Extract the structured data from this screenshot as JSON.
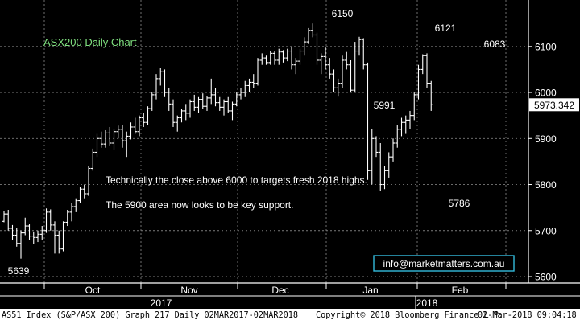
{
  "chart_data": {
    "type": "ohlc-bar",
    "title": "ASX200 Daily Chart",
    "y_ticks": [
      5600,
      5700,
      5800,
      5900,
      6000,
      6100
    ],
    "ylim": [
      5593,
      6194
    ],
    "month_labels": [
      "Oct",
      "Nov",
      "Dec",
      "Jan",
      "Feb"
    ],
    "year_labels": [
      "2017",
      "2018"
    ],
    "current_price": "5973.342",
    "annotations": [
      {
        "text": "6150",
        "value": 6150
      },
      {
        "text": "6121",
        "value": 6121
      },
      {
        "text": "6083",
        "value": 6083
      },
      {
        "text": "5991",
        "value": 5991
      },
      {
        "text": "5786",
        "value": 5786
      },
      {
        "text": "5639",
        "value": 5639
      }
    ],
    "commentary": [
      "Technically the close above 6000 to targets fresh 2018 highs.",
      "The 5900 area now looks to be key support."
    ],
    "contact": "info@marketmatters.com.au",
    "colors": {
      "background": "#000000",
      "bars": "#ffffff",
      "grid": "#7a7a7a",
      "title": "#7fe07f",
      "contact_border": "#33bbdd"
    },
    "series": [
      {
        "values": [
          [
            5720,
            5742,
            5718,
            5736
          ],
          [
            5736,
            5745,
            5700,
            5705
          ],
          [
            5705,
            5712,
            5680,
            5690
          ],
          [
            5690,
            5705,
            5665,
            5672
          ],
          [
            5672,
            5700,
            5639,
            5695
          ],
          [
            5695,
            5728,
            5690,
            5710
          ],
          [
            5710,
            5715,
            5680,
            5688
          ],
          [
            5688,
            5698,
            5670,
            5685
          ],
          [
            5685,
            5700,
            5675,
            5692
          ],
          [
            5692,
            5710,
            5680,
            5700
          ],
          [
            5700,
            5748,
            5695,
            5740
          ],
          [
            5740,
            5746,
            5700,
            5712
          ],
          [
            5712,
            5720,
            5650,
            5690
          ],
          [
            5690,
            5700,
            5650,
            5660
          ],
          [
            5660,
            5720,
            5655,
            5718
          ],
          [
            5718,
            5745,
            5710,
            5740
          ],
          [
            5740,
            5760,
            5720,
            5752
          ],
          [
            5752,
            5770,
            5740,
            5765
          ],
          [
            5765,
            5795,
            5760,
            5790
          ],
          [
            5790,
            5800,
            5770,
            5780
          ],
          [
            5780,
            5840,
            5775,
            5835
          ],
          [
            5835,
            5878,
            5830,
            5870
          ],
          [
            5870,
            5910,
            5860,
            5900
          ],
          [
            5900,
            5915,
            5880,
            5888
          ],
          [
            5888,
            5918,
            5880,
            5912
          ],
          [
            5912,
            5925,
            5885,
            5890
          ],
          [
            5890,
            5920,
            5875,
            5915
          ],
          [
            5915,
            5928,
            5900,
            5920
          ],
          [
            5920,
            5930,
            5880,
            5895
          ],
          [
            5895,
            5915,
            5860,
            5905
          ],
          [
            5905,
            5935,
            5898,
            5925
          ],
          [
            5925,
            5945,
            5910,
            5915
          ],
          [
            5915,
            5950,
            5905,
            5945
          ],
          [
            5945,
            5955,
            5925,
            5935
          ],
          [
            5935,
            5970,
            5930,
            5965
          ],
          [
            5965,
            6000,
            5960,
            5995
          ],
          [
            5995,
            6040,
            5985,
            6030
          ],
          [
            6030,
            6053,
            6015,
            6045
          ],
          [
            6045,
            6050,
            5990,
            6000
          ],
          [
            6000,
            6010,
            5960,
            5975
          ],
          [
            5975,
            5985,
            5925,
            5935
          ],
          [
            5935,
            5950,
            5915,
            5945
          ],
          [
            5945,
            5965,
            5935,
            5960
          ],
          [
            5960,
            5975,
            5940,
            5955
          ],
          [
            5955,
            5985,
            5945,
            5980
          ],
          [
            5980,
            5995,
            5960,
            5968
          ],
          [
            5968,
            5990,
            5955,
            5985
          ],
          [
            5985,
            5998,
            5965,
            5970
          ],
          [
            5970,
            5992,
            5960,
            5988
          ],
          [
            5988,
            6030,
            5975,
            5995
          ],
          [
            5995,
            6010,
            5970,
            5978
          ],
          [
            5978,
            5990,
            5960,
            5968
          ],
          [
            5968,
            5985,
            5950,
            5980
          ],
          [
            5980,
            5990,
            5955,
            5960
          ],
          [
            5960,
            5980,
            5940,
            5975
          ],
          [
            5975,
            6000,
            5970,
            5995
          ],
          [
            5995,
            6010,
            5985,
            6000
          ],
          [
            6000,
            6025,
            5990,
            6015
          ],
          [
            6015,
            6030,
            6000,
            6022
          ],
          [
            6022,
            6040,
            6010,
            6020
          ],
          [
            6020,
            6075,
            6015,
            6070
          ],
          [
            6070,
            6085,
            6060,
            6075
          ],
          [
            6075,
            6080,
            6060,
            6065
          ],
          [
            6065,
            6090,
            6060,
            6085
          ],
          [
            6085,
            6090,
            6060,
            6070
          ],
          [
            6070,
            6095,
            6060,
            6088
          ],
          [
            6088,
            6092,
            6065,
            6075
          ],
          [
            6075,
            6095,
            6068,
            6090
          ],
          [
            6090,
            6100,
            6050,
            6060
          ],
          [
            6060,
            6075,
            6040,
            6068
          ],
          [
            6068,
            6095,
            6060,
            6090
          ],
          [
            6090,
            6120,
            6080,
            6110
          ],
          [
            6110,
            6140,
            6105,
            6135
          ],
          [
            6135,
            6150,
            6120,
            6125
          ],
          [
            6125,
            6130,
            6060,
            6070
          ],
          [
            6070,
            6085,
            6040,
            6078
          ],
          [
            6078,
            6100,
            6050,
            6060
          ],
          [
            6060,
            6075,
            6030,
            6040
          ],
          [
            6040,
            6050,
            6000,
            6010
          ],
          [
            6010,
            6030,
            5991,
            6020
          ],
          [
            6020,
            6080,
            6010,
            6070
          ],
          [
            6070,
            6088,
            6050,
            6060
          ],
          [
            6060,
            6070,
            6000,
            6005
          ],
          [
            6005,
            6110,
            6000,
            6090
          ],
          [
            6090,
            6121,
            6080,
            6115
          ],
          [
            6115,
            6118,
            6050,
            6060
          ],
          [
            6060,
            6065,
            5810,
            5830
          ],
          [
            5830,
            5920,
            5800,
            5900
          ],
          [
            5900,
            5905,
            5860,
            5870
          ],
          [
            5870,
            5890,
            5786,
            5800
          ],
          [
            5800,
            5840,
            5790,
            5830
          ],
          [
            5830,
            5870,
            5815,
            5860
          ],
          [
            5860,
            5900,
            5850,
            5890
          ],
          [
            5890,
            5930,
            5880,
            5920
          ],
          [
            5920,
            5945,
            5905,
            5935
          ],
          [
            5935,
            5950,
            5910,
            5940
          ],
          [
            5940,
            5960,
            5920,
            5950
          ],
          [
            5950,
            6000,
            5940,
            5995
          ],
          [
            5995,
            6060,
            5985,
            6050
          ],
          [
            6050,
            6083,
            6040,
            6080
          ],
          [
            6080,
            6085,
            6010,
            6020
          ],
          [
            6020,
            6025,
            5960,
            5973.342
          ]
        ]
      }
    ]
  },
  "footer": {
    "left": "AS51 Index (S&P/ASX 200) Graph 217  Daily 02MAR2017-02MAR2018",
    "center": "Copyright© 2018 Bloomberg Finance L.P.",
    "right": "02-Mar-2018 09:04:18"
  }
}
